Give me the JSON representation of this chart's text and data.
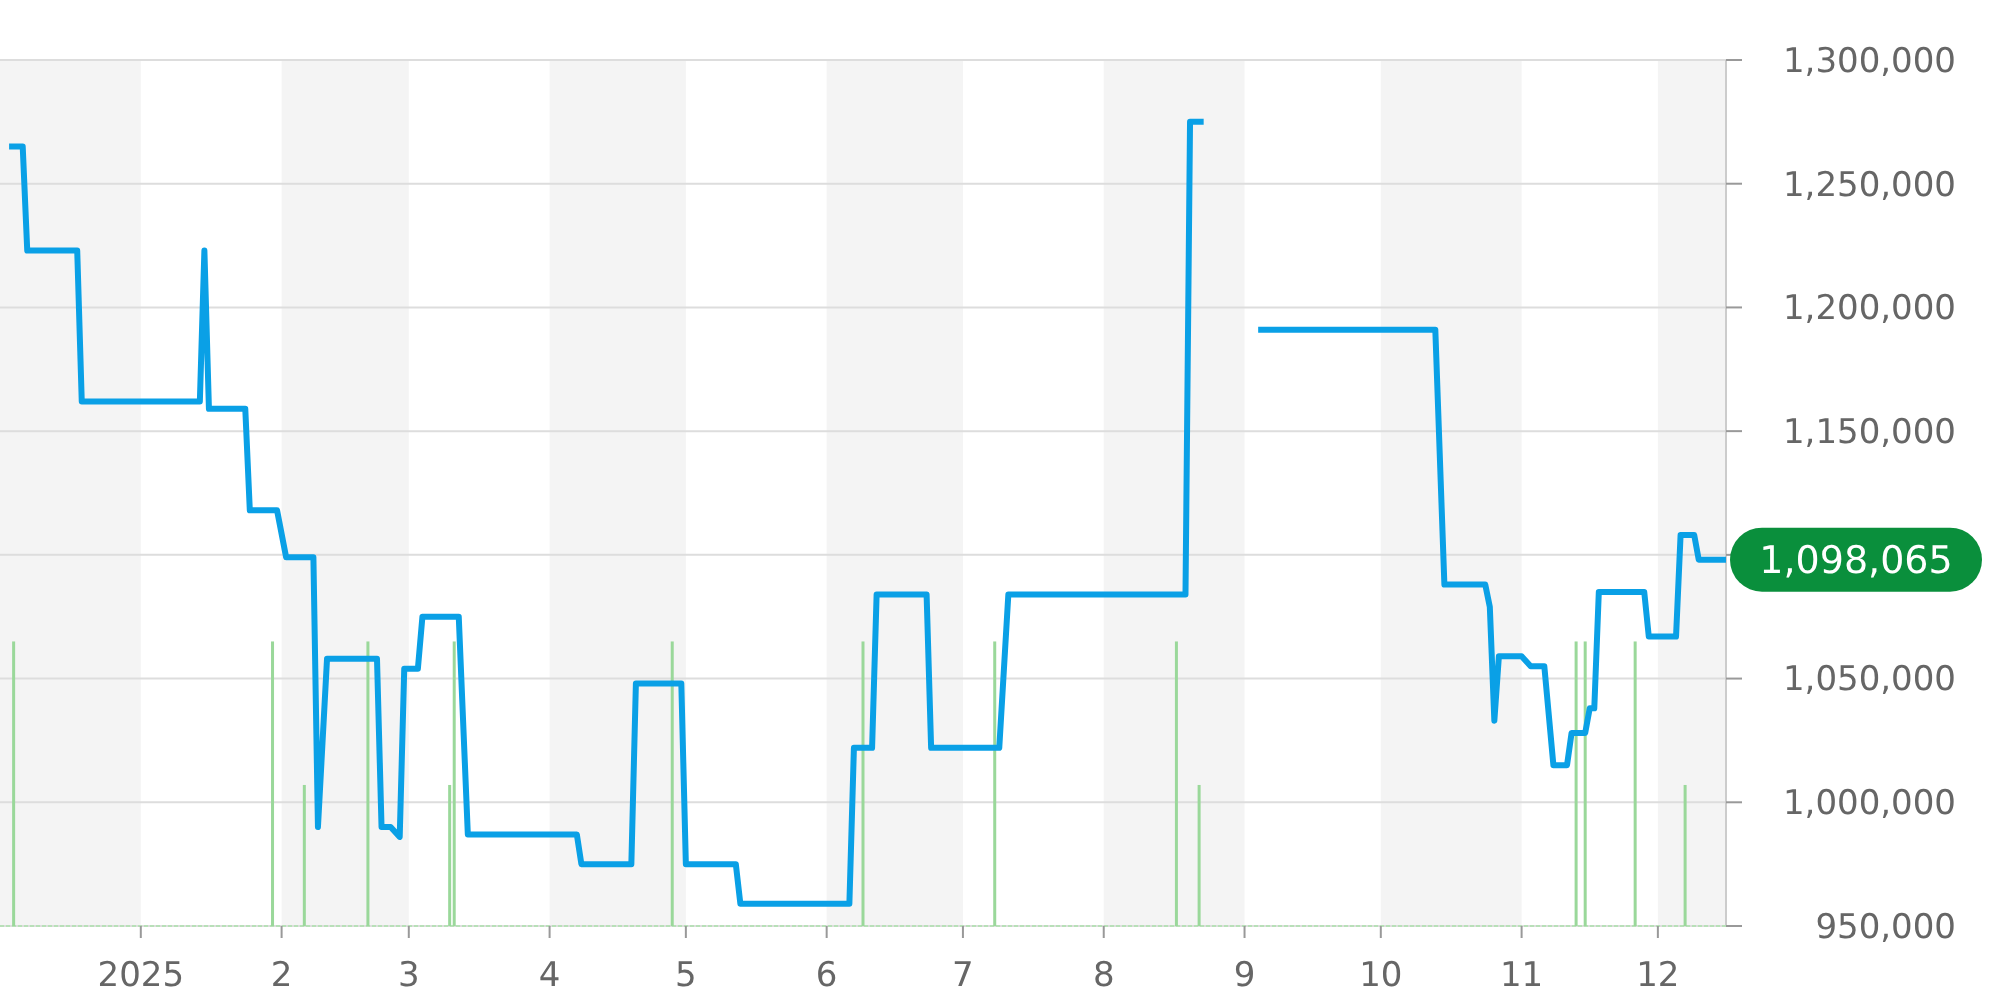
{
  "chart_data": {
    "type": "line",
    "xlim": [
      "2024-12-01",
      "2025-12-16"
    ],
    "ylim": [
      950000,
      1300000
    ],
    "xticks": [
      {
        "value": "2025-01-01",
        "label": "2025"
      },
      {
        "value": "2025-02-01",
        "label": "2"
      },
      {
        "value": "2025-03-01",
        "label": "3"
      },
      {
        "value": "2025-04-01",
        "label": "4"
      },
      {
        "value": "2025-05-01",
        "label": "5"
      },
      {
        "value": "2025-06-01",
        "label": "6"
      },
      {
        "value": "2025-07-01",
        "label": "7"
      },
      {
        "value": "2025-08-01",
        "label": "8"
      },
      {
        "value": "2025-09-01",
        "label": "9"
      },
      {
        "value": "2025-10-01",
        "label": "10"
      },
      {
        "value": "2025-11-01",
        "label": "11"
      },
      {
        "value": "2025-12-01",
        "label": "12"
      }
    ],
    "yticks": [
      {
        "value": 950000,
        "label": "950,000"
      },
      {
        "value": 1000000,
        "label": "1,000,000"
      },
      {
        "value": 1050000,
        "label": "1,050,000"
      },
      {
        "value": 1100000,
        "label": null
      },
      {
        "value": 1150000,
        "label": "1,150,000"
      },
      {
        "value": 1200000,
        "label": "1,200,000"
      },
      {
        "value": 1250000,
        "label": "1,250,000"
      },
      {
        "value": 1300000,
        "label": "1,300,000"
      }
    ],
    "grid": "y",
    "bands": [
      {
        "axis": "x",
        "from": "2024-12-01",
        "to": "2025-01-01",
        "color": "#f4f4f4"
      },
      {
        "axis": "x",
        "from": "2025-02-01",
        "to": "2025-03-01",
        "color": "#f4f4f4"
      },
      {
        "axis": "x",
        "from": "2025-04-01",
        "to": "2025-05-01",
        "color": "#f4f4f4"
      },
      {
        "axis": "x",
        "from": "2025-06-01",
        "to": "2025-07-01",
        "color": "#f4f4f4"
      },
      {
        "axis": "x",
        "from": "2025-08-01",
        "to": "2025-09-01",
        "color": "#f4f4f4"
      },
      {
        "axis": "x",
        "from": "2025-10-01",
        "to": "2025-11-01",
        "color": "#f4f4f4"
      },
      {
        "axis": "x",
        "from": "2025-12-01",
        "to": "2025-12-16",
        "color": "#f4f4f4"
      }
    ],
    "series": [
      {
        "type": "bar",
        "color": "#9ad89a",
        "x": [
          "2024-12-04",
          "2025-01-30",
          "2025-02-06",
          "2025-02-20",
          "2025-03-10",
          "2025-03-11",
          "2025-04-28",
          "2025-06-09",
          "2025-07-08",
          "2025-08-17",
          "2025-08-22",
          "2025-11-13",
          "2025-11-15",
          "2025-11-26",
          "2025-12-07"
        ],
        "values": [
          1065000,
          1065000,
          1007000,
          1065000,
          1007000,
          1065000,
          1065000,
          1065000,
          1065000,
          1065000,
          1007000,
          1065000,
          1065000,
          1065000,
          1007000
        ]
      },
      {
        "color": "#0aa0e6",
        "x": [
          "2024-12-03",
          "2024-12-06",
          "2024-12-07",
          "2024-12-18",
          "2024-12-19",
          "2025-01-14",
          "2025-01-15",
          "2025-01-16",
          "2025-01-24",
          "2025-01-25",
          "2025-01-31",
          "2025-02-02",
          "2025-02-08",
          "2025-02-09",
          "2025-02-11",
          "2025-02-22",
          "2025-02-23",
          "2025-02-25",
          "2025-02-27",
          "2025-02-28",
          "2025-03-03",
          "2025-03-04",
          "2025-03-12",
          "2025-03-14",
          "2025-04-07",
          "2025-04-08",
          "2025-04-19",
          "2025-04-20",
          "2025-04-30",
          "2025-05-01",
          "2025-05-12",
          "2025-05-13",
          "2025-06-06",
          "2025-06-07",
          "2025-06-11",
          "2025-06-12",
          "2025-06-23",
          "2025-06-24",
          "2025-07-09",
          "2025-07-11",
          "2025-08-19",
          "2025-08-20",
          "2025-08-23",
          "2025-08-28",
          "2025-09-04",
          "2025-10-13",
          "2025-10-15",
          "2025-10-24",
          "2025-10-25",
          "2025-10-26",
          "2025-10-27",
          "2025-11-01",
          "2025-11-03",
          "2025-11-06",
          "2025-11-08",
          "2025-11-11",
          "2025-11-12",
          "2025-11-15",
          "2025-11-16",
          "2025-11-17",
          "2025-11-18",
          "2025-11-28",
          "2025-11-29",
          "2025-12-05",
          "2025-12-06",
          "2025-12-09",
          "2025-12-10",
          "2025-12-16"
        ],
        "values": [
          1265000,
          1265000,
          1223000,
          1223000,
          1162000,
          1162000,
          1223000,
          1159000,
          1159000,
          1118000,
          1118000,
          1099000,
          1099000,
          990000,
          1058000,
          1058000,
          990000,
          990000,
          986000,
          1054000,
          1054000,
          1075000,
          1075000,
          987000,
          987000,
          975000,
          975000,
          1048000,
          1048000,
          975000,
          975000,
          959000,
          959000,
          1022000,
          1022000,
          1084000,
          1084000,
          1022000,
          1022000,
          1084000,
          1084000,
          1275000,
          1275000,
          null,
          1191000,
          1191000,
          1088000,
          1088000,
          1079000,
          1033000,
          1059000,
          1059000,
          1055000,
          1055000,
          1015000,
          1015000,
          1028000,
          1028000,
          1038000,
          1038000,
          1085000,
          1085000,
          1067000,
          1067000,
          1108000,
          1108000,
          1098000,
          1098000
        ]
      }
    ],
    "annotations": [
      {
        "text": "1,098,065",
        "x": "2025-12-16",
        "y": 1098065
      }
    ]
  }
}
